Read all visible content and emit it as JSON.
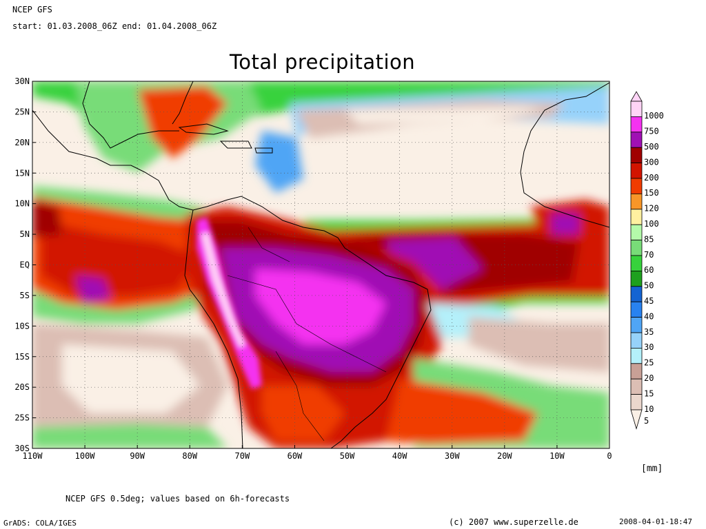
{
  "header": {
    "model": "NCEP GFS",
    "period": "start: 01.03.2008_06Z end: 01.04.2008_06Z"
  },
  "title": "Total precipitation",
  "lat_labels": [
    "30N",
    "25N",
    "20N",
    "15N",
    "10N",
    "5N",
    "EQ",
    "5S",
    "10S",
    "15S",
    "20S",
    "25S",
    "30S"
  ],
  "lon_labels": [
    "110W",
    "100W",
    "90W",
    "80W",
    "70W",
    "60W",
    "50W",
    "40W",
    "30W",
    "20W",
    "10W",
    "0"
  ],
  "colorbar": {
    "unit": "[mm]",
    "levels": [
      {
        "label": "1000",
        "color": "#ffd4f6"
      },
      {
        "label": "750",
        "color": "#f432f0"
      },
      {
        "label": "500",
        "color": "#a010b4"
      },
      {
        "label": "300",
        "color": "#a00000"
      },
      {
        "label": "200",
        "color": "#d21400"
      },
      {
        "label": "150",
        "color": "#f03c00"
      },
      {
        "label": "120",
        "color": "#f89628"
      },
      {
        "label": "100",
        "color": "#fff0a0"
      },
      {
        "label": "85",
        "color": "#b4faaa"
      },
      {
        "label": "70",
        "color": "#78dc78"
      },
      {
        "label": "60",
        "color": "#37d23c"
      },
      {
        "label": "50",
        "color": "#1ea01e"
      },
      {
        "label": "45",
        "color": "#1464d2"
      },
      {
        "label": "40",
        "color": "#2882f0"
      },
      {
        "label": "35",
        "color": "#50a5f5"
      },
      {
        "label": "30",
        "color": "#96d2fa"
      },
      {
        "label": "25",
        "color": "#b4f0fa"
      },
      {
        "label": "20",
        "color": "#c8a096"
      },
      {
        "label": "15",
        "color": "#dcbeb4"
      },
      {
        "label": "10",
        "color": "#ebd7cd"
      },
      {
        "label": "5",
        "color": "#faf0e6"
      }
    ]
  },
  "footer": {
    "note": "NCEP GFS 0.5deg; values based on 6h-forecasts",
    "software": "GrADS: COLA/IGES",
    "copyright": "(c) 2007 www.superzelle.de",
    "timestamp": "2008-04-01-18:47"
  }
}
